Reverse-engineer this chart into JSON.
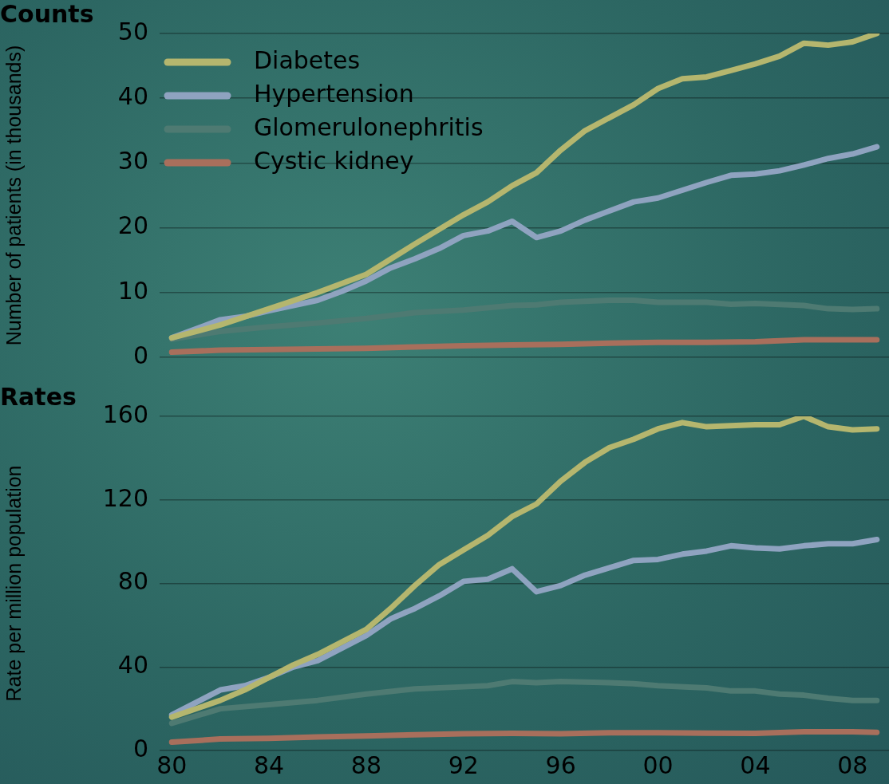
{
  "chart_data": [
    {
      "type": "line",
      "title": "Counts",
      "ylabel": "Number of patients (in thousands)",
      "xlim": [
        1979.5,
        2009.5
      ],
      "ylim": [
        0,
        50
      ],
      "yticks": [
        0,
        10,
        20,
        30,
        40,
        50
      ],
      "grid": "y",
      "legend": "top left",
      "tick_labels": "y",
      "marker": "none",
      "line_style": "solid",
      "series": [
        {
          "name": "Diabetes",
          "color": "#b5b66e",
          "x": [
            1980,
            1982,
            1984,
            1986,
            1988,
            1990,
            1992,
            1993,
            1994,
            1995,
            1996,
            1997,
            1998,
            1999,
            2000,
            2001,
            2002,
            2003,
            2004,
            2005,
            2006,
            2007,
            2008,
            2009
          ],
          "values": [
            3,
            5,
            7.5,
            10,
            12.8,
            17.5,
            22,
            24,
            26.5,
            28.5,
            32,
            35,
            37,
            39,
            41.5,
            43,
            43.3,
            44.3,
            45.3,
            46.5,
            48.5,
            48.2,
            48.7,
            50
          ]
        },
        {
          "name": "Hypertension",
          "color": "#8fa3c0",
          "x": [
            1980,
            1982,
            1983,
            1984,
            1985,
            1986,
            1987,
            1988,
            1989,
            1990,
            1991,
            1992,
            1993,
            1994,
            1995,
            1996,
            1997,
            1998,
            1999,
            2000,
            2001,
            2002,
            2003,
            2004,
            2005,
            2006,
            2007,
            2008,
            2009
          ],
          "values": [
            3,
            5.8,
            6.3,
            7.2,
            8,
            8.8,
            10.2,
            11.8,
            13.8,
            15.2,
            16.8,
            18.8,
            19.5,
            21,
            18.5,
            19.5,
            21.2,
            22.6,
            24,
            24.6,
            25.8,
            27,
            28.1,
            28.3,
            28.8,
            29.7,
            30.7,
            31.4,
            32.5
          ]
        },
        {
          "name": "Glomerulonephritis",
          "color": "#4e7a72",
          "x": [
            1980,
            1982,
            1984,
            1986,
            1988,
            1990,
            1992,
            1994,
            1995,
            1996,
            1998,
            1999,
            2000,
            2002,
            2003,
            2004,
            2006,
            2007,
            2008,
            2009
          ],
          "values": [
            2.8,
            4,
            4.7,
            5.3,
            6,
            6.9,
            7.3,
            8,
            8.1,
            8.5,
            8.8,
            8.8,
            8.5,
            8.5,
            8.2,
            8.3,
            8,
            7.5,
            7.4,
            7.5
          ]
        },
        {
          "name": "Cystic kidney",
          "color": "#a86f5c",
          "x": [
            1980,
            1982,
            1984,
            1986,
            1988,
            1990,
            1992,
            1994,
            1996,
            1998,
            2000,
            2002,
            2004,
            2006,
            2008,
            2009
          ],
          "values": [
            0.8,
            1.1,
            1.2,
            1.3,
            1.4,
            1.6,
            1.8,
            1.9,
            2,
            2.2,
            2.3,
            2.3,
            2.4,
            2.7,
            2.7,
            2.7
          ]
        }
      ]
    },
    {
      "type": "line",
      "title": "Rates",
      "ylabel": "Rate per million population",
      "xlim": [
        1979.5,
        2009.5
      ],
      "ylim": [
        0,
        160
      ],
      "yticks": [
        0,
        40,
        80,
        120,
        160
      ],
      "xticks": [
        {
          "value": 1980,
          "label": "80"
        },
        {
          "value": 1984,
          "label": "84"
        },
        {
          "value": 1988,
          "label": "88"
        },
        {
          "value": 1992,
          "label": "92"
        },
        {
          "value": 1996,
          "label": "96"
        },
        {
          "value": 2000,
          "label": "00"
        },
        {
          "value": 2004,
          "label": "04"
        },
        {
          "value": 2008,
          "label": "08"
        }
      ],
      "grid": "y",
      "marker": "none",
      "line_style": "solid",
      "series": [
        {
          "color": "#b5b66e",
          "x": [
            1980,
            1982,
            1983,
            1984,
            1985,
            1986,
            1987,
            1988,
            1989,
            1990,
            1991,
            1992,
            1993,
            1994,
            1995,
            1996,
            1997,
            1998,
            1999,
            2000,
            2001,
            2002,
            2003,
            2004,
            2005,
            2006,
            2007,
            2008,
            2009
          ],
          "values": [
            16,
            24,
            29,
            35,
            41,
            46,
            52,
            58,
            68,
            79,
            89,
            96,
            103,
            112,
            118,
            129,
            138,
            145,
            149,
            154,
            157,
            155,
            155.5,
            156,
            156,
            160,
            155,
            153.5,
            154
          ]
        },
        {
          "color": "#8fa3c0",
          "x": [
            1980,
            1982,
            1983,
            1984,
            1985,
            1986,
            1987,
            1988,
            1989,
            1990,
            1991,
            1992,
            1993,
            1994,
            1995,
            1996,
            1997,
            1998,
            1999,
            2000,
            2001,
            2002,
            2003,
            2004,
            2005,
            2006,
            2007,
            2008,
            2009
          ],
          "values": [
            17,
            29,
            31,
            35,
            40,
            43,
            49,
            55,
            63,
            68,
            74,
            81,
            82,
            87,
            76,
            79,
            84,
            87.5,
            91,
            91.5,
            94,
            95.5,
            98,
            97,
            96.5,
            98,
            99,
            99,
            101
          ]
        },
        {
          "color": "#4e7a72",
          "x": [
            1980,
            1982,
            1984,
            1986,
            1988,
            1990,
            1992,
            1993,
            1994,
            1995,
            1996,
            1998,
            1999,
            2000,
            2002,
            2003,
            2004,
            2005,
            2006,
            2007,
            2008,
            2009
          ],
          "values": [
            13,
            20,
            22,
            24,
            27,
            29.5,
            30.5,
            31,
            33,
            32.5,
            33,
            32.5,
            32,
            31,
            30,
            28.5,
            28.5,
            27,
            26.5,
            25,
            24,
            24
          ]
        },
        {
          "color": "#a86f5c",
          "x": [
            1980,
            1982,
            1984,
            1986,
            1988,
            1990,
            1992,
            1994,
            1996,
            1998,
            2000,
            2002,
            2004,
            2006,
            2008,
            2009
          ],
          "values": [
            4,
            5.5,
            5.8,
            6.5,
            7,
            7.5,
            8,
            8.2,
            8,
            8.5,
            8.5,
            8.3,
            8.2,
            9,
            9,
            8.7
          ]
        }
      ]
    }
  ]
}
